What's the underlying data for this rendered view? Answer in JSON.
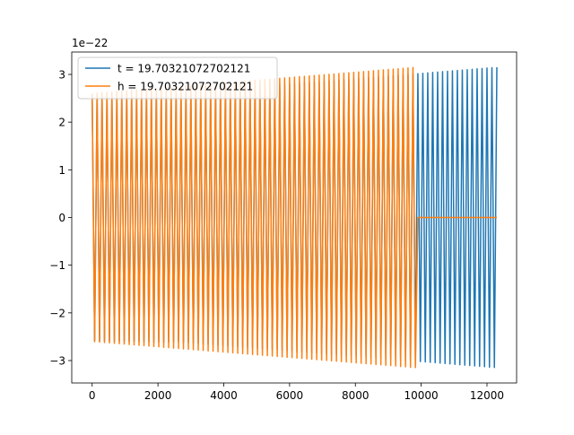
{
  "chart_data": {
    "type": "line",
    "title": "",
    "xlabel": "",
    "ylabel": "",
    "y_offset_label": "1e−22",
    "xlim": [
      -620,
      12900
    ],
    "ylim": [
      -3.47,
      3.47
    ],
    "x_ticks": [
      0,
      2000,
      4000,
      6000,
      8000,
      10000,
      12000
    ],
    "x_tick_labels": [
      "0",
      "2000",
      "4000",
      "6000",
      "8000",
      "10000",
      "12000"
    ],
    "y_ticks": [
      -3,
      -2,
      -1,
      0,
      1,
      2,
      3
    ],
    "y_tick_labels": [
      "−3",
      "−2",
      "−1",
      "0",
      "1",
      "2",
      "3"
    ],
    "grid": false,
    "legend_position": "upper-left",
    "series": [
      {
        "name": "t = 19.70321072702121",
        "color": "#1f77b4",
        "x_start": 0,
        "x_end": 12300,
        "segments": [
          {
            "x_from": 0,
            "x_to": 2450,
            "amp_from": 2.58,
            "amp_to": 2.62
          },
          {
            "x_from": 2450,
            "x_to": 12300,
            "amp_from": 2.6,
            "amp_to": 3.15
          }
        ],
        "period": 150
      },
      {
        "name": "h = 19.70321072702121",
        "color": "#ff7f0e",
        "x_start": 0,
        "x_end": 12300,
        "segments": [
          {
            "x_from": 0,
            "x_to": 9850,
            "amp_from": 2.6,
            "amp_to": 3.15
          },
          {
            "x_from": 9850,
            "x_to": 12300,
            "amp_from": 0,
            "amp_to": 0
          }
        ],
        "period": 150
      }
    ]
  }
}
